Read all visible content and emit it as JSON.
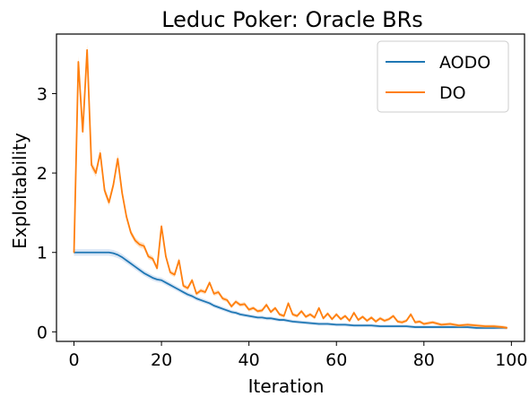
{
  "chart_data": {
    "type": "line",
    "title": "Leduc Poker: Oracle BRs",
    "xlabel": "Iteration",
    "ylabel": "Exploitability",
    "xlim": [
      -4,
      103
    ],
    "ylim": [
      -0.12,
      3.75
    ],
    "xticks": [
      0,
      20,
      40,
      60,
      80,
      100
    ],
    "yticks": [
      0,
      1,
      2,
      3
    ],
    "grid": false,
    "legend": "top-right",
    "series": [
      {
        "name": "AODO",
        "color": "#1f77b4",
        "band_color": "#aec7e8",
        "x": [
          0,
          1,
          2,
          3,
          4,
          5,
          6,
          7,
          8,
          9,
          10,
          11,
          12,
          13,
          14,
          15,
          16,
          17,
          18,
          19,
          20,
          21,
          22,
          23,
          24,
          25,
          26,
          27,
          28,
          29,
          30,
          31,
          32,
          33,
          34,
          35,
          36,
          37,
          38,
          39,
          40,
          41,
          42,
          43,
          44,
          45,
          46,
          47,
          48,
          49,
          50,
          52,
          54,
          56,
          58,
          60,
          62,
          64,
          66,
          68,
          70,
          72,
          74,
          76,
          78,
          80,
          82,
          84,
          86,
          88,
          90,
          92,
          94,
          96,
          98,
          99
        ],
        "y": [
          1.0,
          1.0,
          1.0,
          1.0,
          1.0,
          1.0,
          1.0,
          1.0,
          1.0,
          0.99,
          0.97,
          0.94,
          0.9,
          0.86,
          0.82,
          0.78,
          0.74,
          0.71,
          0.68,
          0.66,
          0.65,
          0.62,
          0.59,
          0.56,
          0.53,
          0.5,
          0.47,
          0.45,
          0.42,
          0.4,
          0.38,
          0.36,
          0.33,
          0.31,
          0.29,
          0.27,
          0.25,
          0.24,
          0.22,
          0.21,
          0.2,
          0.19,
          0.18,
          0.18,
          0.17,
          0.17,
          0.16,
          0.15,
          0.15,
          0.14,
          0.13,
          0.12,
          0.11,
          0.1,
          0.1,
          0.09,
          0.09,
          0.08,
          0.08,
          0.08,
          0.07,
          0.07,
          0.07,
          0.07,
          0.06,
          0.06,
          0.06,
          0.06,
          0.06,
          0.06,
          0.06,
          0.05,
          0.05,
          0.05,
          0.05,
          0.05
        ]
      },
      {
        "name": "DO",
        "color": "#ff7f0e",
        "band_color": "#ffbb78",
        "x": [
          0,
          1,
          2,
          3,
          4,
          5,
          6,
          7,
          8,
          9,
          10,
          11,
          12,
          13,
          14,
          15,
          16,
          17,
          18,
          19,
          20,
          21,
          22,
          23,
          24,
          25,
          26,
          27,
          28,
          29,
          30,
          31,
          32,
          33,
          34,
          35,
          36,
          37,
          38,
          39,
          40,
          41,
          42,
          43,
          44,
          45,
          46,
          47,
          48,
          49,
          50,
          51,
          52,
          53,
          54,
          55,
          56,
          57,
          58,
          59,
          60,
          61,
          62,
          63,
          64,
          65,
          66,
          67,
          68,
          69,
          70,
          71,
          72,
          73,
          74,
          75,
          76,
          77,
          78,
          79,
          80,
          82,
          84,
          86,
          88,
          90,
          92,
          94,
          96,
          98,
          99
        ],
        "y": [
          1.0,
          3.4,
          2.52,
          3.55,
          2.1,
          2.0,
          2.25,
          1.78,
          1.63,
          1.85,
          2.18,
          1.75,
          1.45,
          1.25,
          1.15,
          1.1,
          1.08,
          0.95,
          0.92,
          0.8,
          1.33,
          0.95,
          0.75,
          0.72,
          0.9,
          0.58,
          0.55,
          0.65,
          0.48,
          0.52,
          0.5,
          0.62,
          0.48,
          0.5,
          0.42,
          0.4,
          0.32,
          0.38,
          0.34,
          0.35,
          0.28,
          0.3,
          0.26,
          0.27,
          0.34,
          0.25,
          0.3,
          0.22,
          0.2,
          0.36,
          0.22,
          0.2,
          0.26,
          0.19,
          0.22,
          0.18,
          0.3,
          0.17,
          0.23,
          0.16,
          0.22,
          0.16,
          0.2,
          0.14,
          0.24,
          0.15,
          0.19,
          0.14,
          0.18,
          0.13,
          0.17,
          0.14,
          0.16,
          0.2,
          0.13,
          0.12,
          0.14,
          0.22,
          0.12,
          0.13,
          0.1,
          0.12,
          0.09,
          0.1,
          0.08,
          0.09,
          0.08,
          0.07,
          0.07,
          0.06,
          0.05
        ]
      }
    ]
  }
}
